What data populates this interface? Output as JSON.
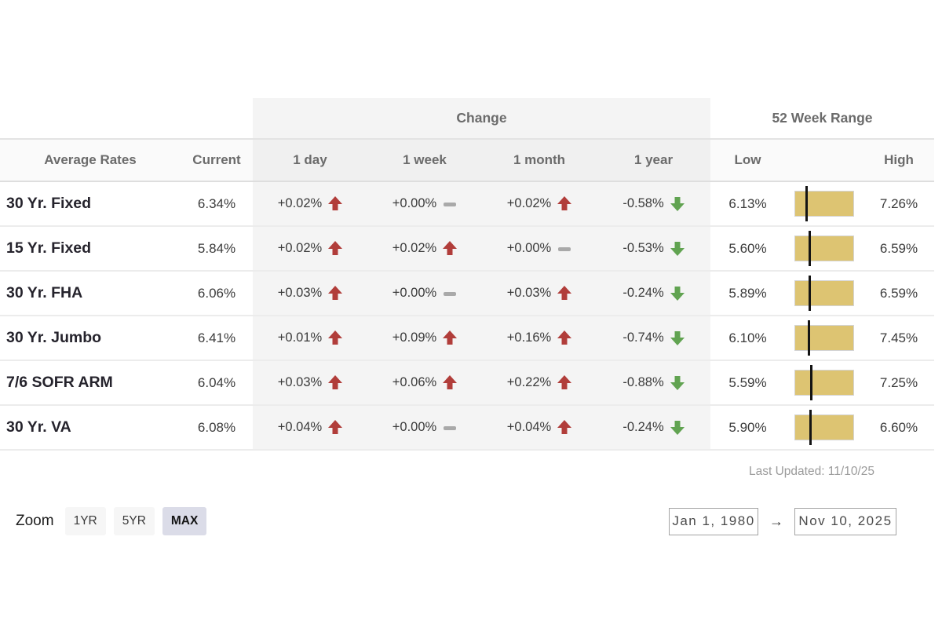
{
  "table": {
    "group_headers": {
      "change": "Change",
      "range": "52 Week Range"
    },
    "columns": {
      "rates": "Average Rates",
      "current": "Current",
      "day": "1 day",
      "week": "1 week",
      "month": "1 month",
      "year": "1 year",
      "low": "Low",
      "high": "High"
    },
    "rows": [
      {
        "label": "30 Yr. Fixed",
        "current": "6.34%",
        "changes": [
          {
            "value": "+0.02%",
            "dir": "up"
          },
          {
            "value": "+0.00%",
            "dir": "flat"
          },
          {
            "value": "+0.02%",
            "dir": "up"
          },
          {
            "value": "-0.58%",
            "dir": "down"
          }
        ],
        "range": {
          "low": "6.13%",
          "high": "7.26%",
          "marker_pct": 18.6
        }
      },
      {
        "label": "15 Yr. Fixed",
        "current": "5.84%",
        "changes": [
          {
            "value": "+0.02%",
            "dir": "up"
          },
          {
            "value": "+0.02%",
            "dir": "up"
          },
          {
            "value": "+0.00%",
            "dir": "flat"
          },
          {
            "value": "-0.53%",
            "dir": "down"
          }
        ],
        "range": {
          "low": "5.60%",
          "high": "6.59%",
          "marker_pct": 24.2
        }
      },
      {
        "label": "30 Yr. FHA",
        "current": "6.06%",
        "changes": [
          {
            "value": "+0.03%",
            "dir": "up"
          },
          {
            "value": "+0.00%",
            "dir": "flat"
          },
          {
            "value": "+0.03%",
            "dir": "up"
          },
          {
            "value": "-0.24%",
            "dir": "down"
          }
        ],
        "range": {
          "low": "5.89%",
          "high": "6.59%",
          "marker_pct": 24.3
        }
      },
      {
        "label": "30 Yr. Jumbo",
        "current": "6.41%",
        "changes": [
          {
            "value": "+0.01%",
            "dir": "up"
          },
          {
            "value": "+0.09%",
            "dir": "up"
          },
          {
            "value": "+0.16%",
            "dir": "up"
          },
          {
            "value": "-0.74%",
            "dir": "down"
          }
        ],
        "range": {
          "low": "6.10%",
          "high": "7.45%",
          "marker_pct": 23.0
        }
      },
      {
        "label": "7/6 SOFR ARM",
        "current": "6.04%",
        "changes": [
          {
            "value": "+0.03%",
            "dir": "up"
          },
          {
            "value": "+0.06%",
            "dir": "up"
          },
          {
            "value": "+0.22%",
            "dir": "up"
          },
          {
            "value": "-0.88%",
            "dir": "down"
          }
        ],
        "range": {
          "low": "5.59%",
          "high": "7.25%",
          "marker_pct": 27.1
        }
      },
      {
        "label": "30 Yr. VA",
        "current": "6.08%",
        "changes": [
          {
            "value": "+0.04%",
            "dir": "up"
          },
          {
            "value": "+0.00%",
            "dir": "flat"
          },
          {
            "value": "+0.04%",
            "dir": "up"
          },
          {
            "value": "-0.24%",
            "dir": "down"
          }
        ],
        "range": {
          "low": "5.90%",
          "high": "6.60%",
          "marker_pct": 25.7
        }
      }
    ],
    "last_updated": "Last Updated: 11/10/25"
  },
  "controls": {
    "zoom_label": "Zoom",
    "zoom_buttons": [
      {
        "label": "1YR",
        "active": false
      },
      {
        "label": "5YR",
        "active": false
      },
      {
        "label": "MAX",
        "active": true
      }
    ],
    "date_from": "Jan 1, 1980",
    "range_arrow": "→",
    "date_to": "Nov 10, 2025"
  },
  "colors": {
    "up_arrow": "#b13d3a",
    "down_arrow": "#61a351",
    "flat_dash": "#a9a9a9",
    "range_bar_fill": "#ddc472",
    "range_marker": "#141414",
    "change_band_bg": "#f4f4f4",
    "active_zoom_bg": "#dbdce8"
  }
}
